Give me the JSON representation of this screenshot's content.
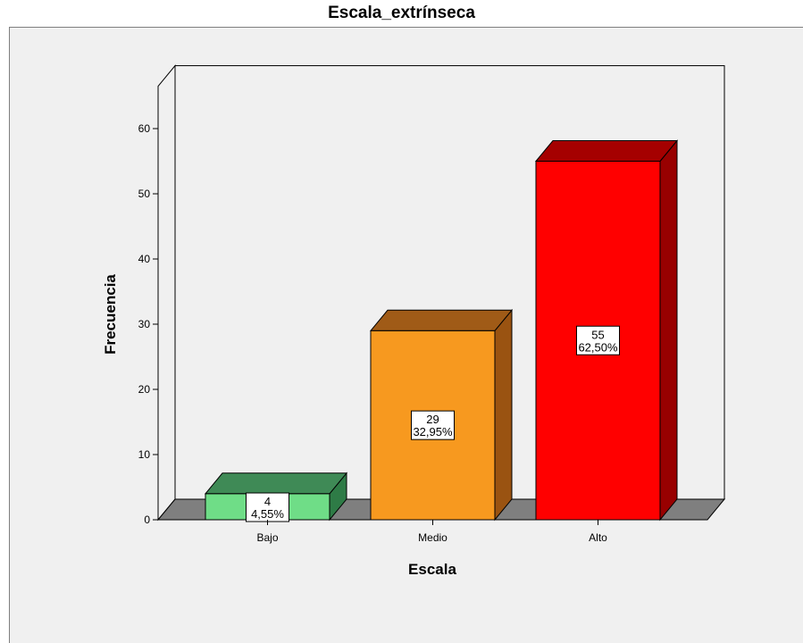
{
  "chart_data": {
    "type": "bar",
    "title": "Escala_extrínseca",
    "xlabel": "Escala",
    "ylabel": "Frecuencia",
    "categories": [
      "Bajo",
      "Medio",
      "Alto"
    ],
    "values": [
      4,
      29,
      55
    ],
    "percent_labels": [
      "4,55%",
      "32,95%",
      "62,50%"
    ],
    "ylim": [
      0,
      60
    ],
    "yticks": [
      "0",
      "10",
      "20",
      "30",
      "40",
      "50",
      "60"
    ],
    "grid": false,
    "style_3d": true,
    "colors": [
      {
        "front": "#6fdd87",
        "side": "#2e7b46",
        "top": "#3f8a56"
      },
      {
        "front": "#f7991f",
        "side": "#9a5311",
        "top": "#a05b17"
      },
      {
        "front": "#ff0000",
        "side": "#980000",
        "top": "#a50000"
      }
    ],
    "floor_color": "#7f7f7f",
    "background_color": "#f0f0f0"
  }
}
